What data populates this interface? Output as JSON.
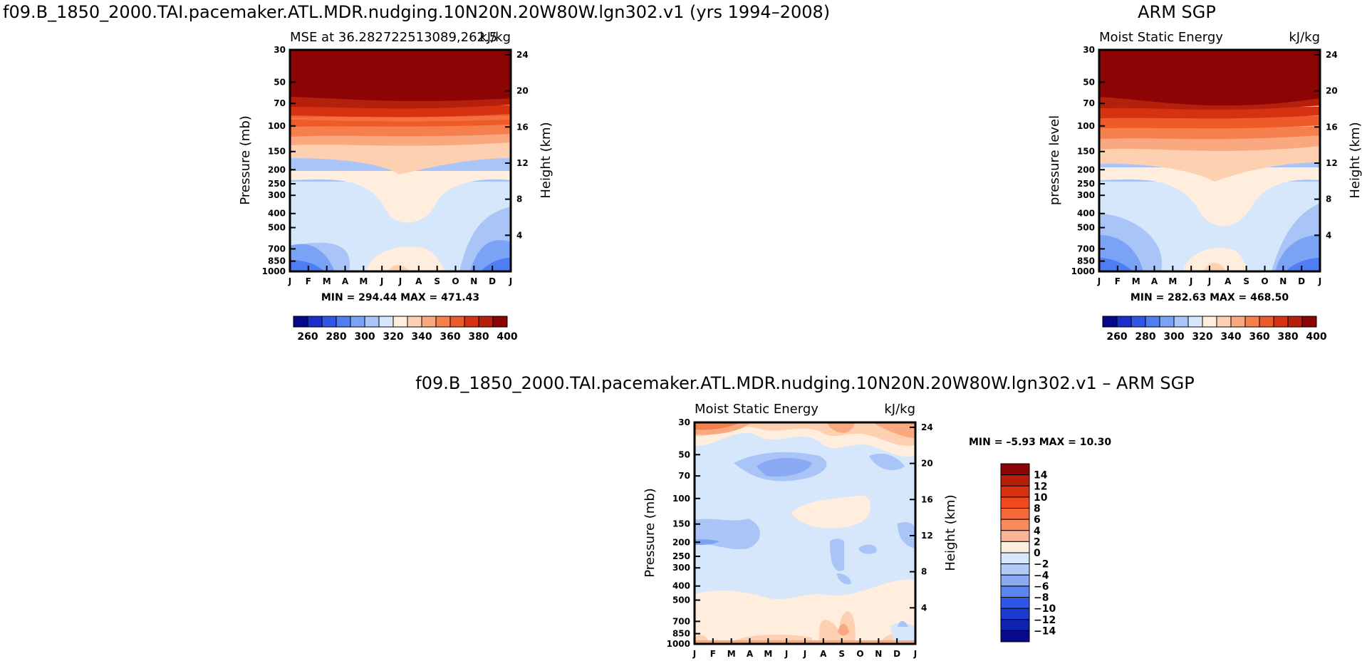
{
  "chart_data": [
    {
      "type": "contour",
      "title": "f09.B_1850_2000.TAI.pacemaker.ATL.MDR.nudging.10N20N.20W80W.lgn302.v1 (yrs 1994–2008)",
      "subtitle_left": "MSE at 36.282722513089,262.5",
      "subtitle_right": "kJ/kg",
      "ylabel": "Pressure (mb)",
      "ylabel_right": "Height (km)",
      "months": [
        "J",
        "F",
        "M",
        "A",
        "M",
        "J",
        "J",
        "A",
        "S",
        "O",
        "N",
        "D",
        "J"
      ],
      "pressure_levels": [
        30,
        50,
        70,
        100,
        150,
        200,
        250,
        300,
        400,
        500,
        700,
        850,
        1000
      ],
      "height_ticks": [
        24,
        20,
        16,
        12,
        8,
        4
      ],
      "minmax": "MIN = 294.44 MAX = 471.43",
      "colorbar_labels": [
        260,
        280,
        300,
        320,
        340,
        360,
        380,
        400
      ]
    },
    {
      "type": "contour",
      "title": "ARM SGP",
      "subtitle_left": "Moist Static Energy",
      "subtitle_right": "kJ/kg",
      "ylabel": "pressure level",
      "ylabel_right": "Height (km)",
      "months": [
        "J",
        "F",
        "M",
        "A",
        "M",
        "J",
        "J",
        "A",
        "S",
        "O",
        "N",
        "D",
        "J"
      ],
      "pressure_levels": [
        30,
        50,
        70,
        100,
        150,
        200,
        250,
        300,
        400,
        500,
        700,
        850,
        1000
      ],
      "height_ticks": [
        24,
        20,
        16,
        12,
        8,
        4
      ],
      "minmax": "MIN = 282.63 MAX = 468.50",
      "colorbar_labels": [
        260,
        280,
        300,
        320,
        340,
        360,
        380,
        400
      ]
    },
    {
      "type": "contour",
      "title": "f09.B_1850_2000.TAI.pacemaker.ATL.MDR.nudging.10N20N.20W80W.lgn302.v1 – ARM SGP",
      "subtitle_left": "Moist Static Energy",
      "subtitle_right": "kJ/kg",
      "ylabel": "Pressure (mb)",
      "ylabel_right": "Height (km)",
      "months": [
        "J",
        "F",
        "M",
        "A",
        "M",
        "J",
        "J",
        "A",
        "S",
        "O",
        "N",
        "D",
        "J"
      ],
      "pressure_levels": [
        30,
        50,
        70,
        100,
        150,
        200,
        250,
        300,
        400,
        500,
        700,
        850,
        1000
      ],
      "height_ticks": [
        24,
        20,
        16,
        12,
        8,
        4
      ],
      "minmax": "MIN =  –5.93 MAX =  10.30",
      "colorbar_labels": [
        14,
        12,
        10,
        8,
        6,
        4,
        2,
        0,
        -2,
        -4,
        -6,
        -8,
        -10,
        -12,
        -14
      ]
    }
  ],
  "colors": {
    "abs_scale": [
      "#08088c",
      "#1c2fc8",
      "#2f56e6",
      "#4f7ef2",
      "#7ba3f5",
      "#a9c4f6",
      "#d6e6fb",
      "#ffeedd",
      "#fcd0b0",
      "#f9a880",
      "#f5804e",
      "#ee5a28",
      "#d63212",
      "#b5200c",
      "#8c0404"
    ],
    "diff_scale": [
      "#8c0404",
      "#b5200c",
      "#d63212",
      "#ee4a1e",
      "#f5693a",
      "#f98a5a",
      "#fab49a",
      "#ffeedd",
      "#d6e6fb",
      "#b2cbf7",
      "#8aaaf3",
      "#5a84ee",
      "#2f56e6",
      "#1c3ad0",
      "#0e22b0",
      "#08088c"
    ]
  }
}
